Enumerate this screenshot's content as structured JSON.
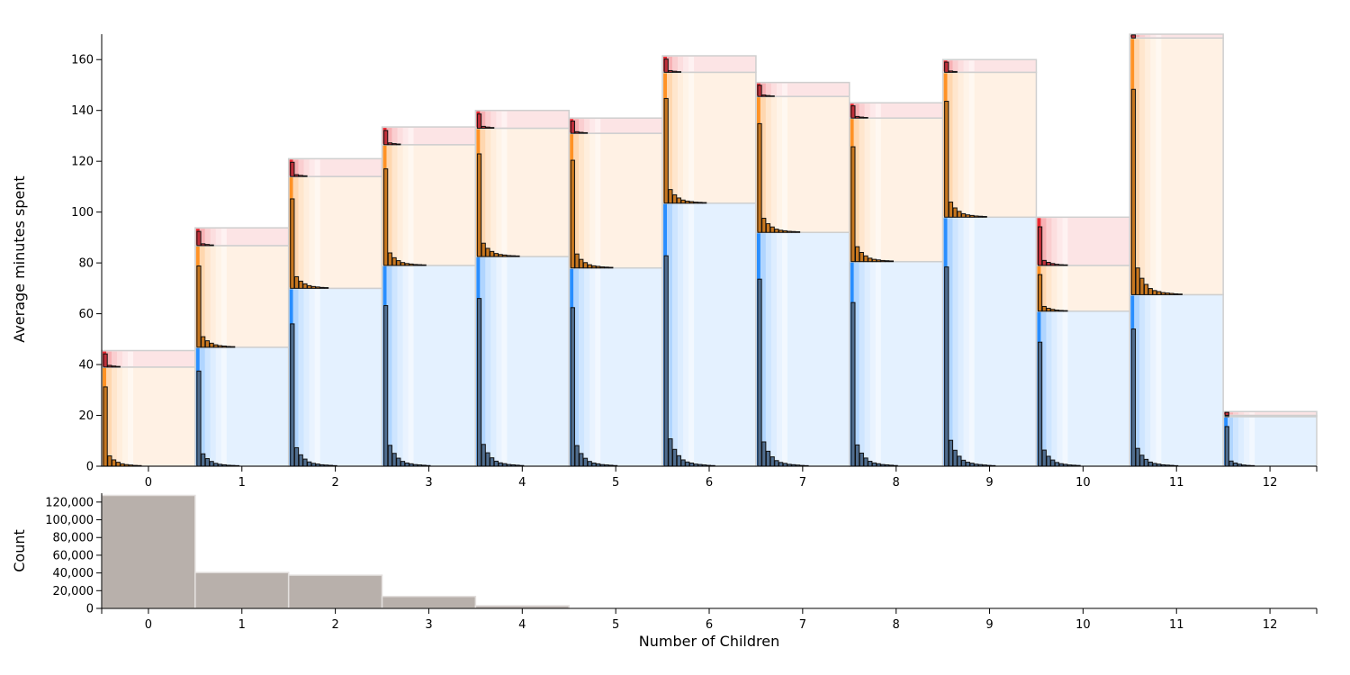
{
  "chart_data": [
    {
      "type": "bar",
      "ylabel": "Average minutes spent",
      "xlabel": "",
      "categories": [
        "0",
        "1",
        "2",
        "3",
        "4",
        "5",
        "6",
        "7",
        "8",
        "9",
        "10",
        "11",
        "12"
      ],
      "y_ticks": [
        "0",
        "20",
        "40",
        "60",
        "80",
        "100",
        "120",
        "140",
        "160"
      ],
      "ylim": [
        0,
        170
      ],
      "grid": false,
      "series": [
        {
          "name": "",
          "color": "#1e88ff",
          "values": [
            0,
            46.8,
            70.0,
            79.0,
            82.5,
            78.0,
            103.5,
            92.0,
            80.5,
            98.0,
            61.0,
            67.5,
            19.5
          ]
        },
        {
          "name": "",
          "color": "#ff8c1a",
          "values": [
            39.0,
            40.0,
            44.0,
            47.5,
            50.5,
            53.0,
            51.5,
            53.5,
            56.5,
            57.0,
            18.0,
            101.0,
            0.5
          ]
        },
        {
          "name": "",
          "color": "#e8202a",
          "values": [
            6.5,
            7.0,
            7.0,
            7.0,
            7.0,
            6.0,
            6.5,
            5.5,
            6.0,
            5.0,
            19.0,
            1.5,
            1.5
          ]
        }
      ]
    },
    {
      "type": "bar",
      "ylabel": "Count",
      "xlabel": "Number of Children",
      "categories": [
        "0",
        "1",
        "2",
        "3",
        "4",
        "5",
        "6",
        "7",
        "8",
        "9",
        "10",
        "11",
        "12"
      ],
      "y_ticks": [
        "0",
        "20,000",
        "40,000",
        "60,000",
        "80,000",
        "100,000",
        "120,000"
      ],
      "ylim": [
        0,
        130000
      ],
      "values": [
        127500,
        40500,
        37500,
        13500,
        3000,
        200,
        40,
        15,
        8,
        5,
        2,
        1,
        1
      ],
      "color": "#b8b0ab"
    }
  ]
}
